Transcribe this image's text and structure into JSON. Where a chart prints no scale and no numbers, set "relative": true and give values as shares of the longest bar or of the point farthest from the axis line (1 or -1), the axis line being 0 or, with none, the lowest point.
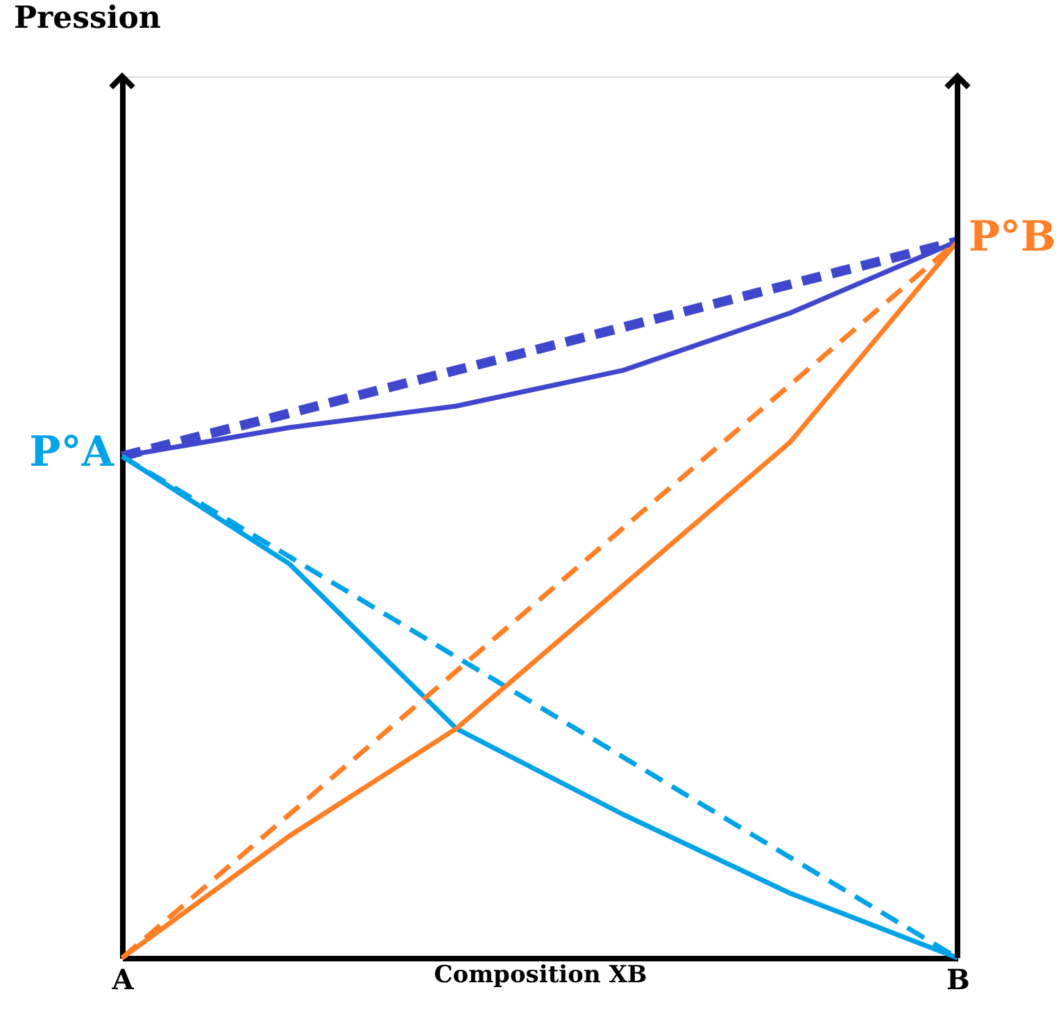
{
  "chart_data": {
    "type": "line",
    "relative": true,
    "xlabel": "Composition XB",
    "categories": [
      "A",
      null,
      null,
      null,
      null,
      "B"
    ],
    "tick_labels": "x",
    "series": [
      {
        "color": "#3f48cc",
        "line_style": "dashed",
        "values": [
          0.7,
          0.76,
          0.82,
          0.88,
          0.94,
          1
        ]
      },
      {
        "color": "#3f48cc",
        "line_style": "solid",
        "values": [
          0.7,
          0.74,
          0.77,
          0.82,
          0.9,
          1
        ]
      },
      {
        "color": "#00a2e8",
        "line_style": "dashed",
        "values": [
          0.7,
          0.56,
          0.42,
          0.28,
          0.14,
          0
        ]
      },
      {
        "color": "#00a2e8",
        "line_style": "solid",
        "values": [
          0.7,
          0.55,
          0.32,
          0.2,
          0.09,
          0
        ]
      },
      {
        "color": "#ff7f27",
        "line_style": "dashed",
        "values": [
          0,
          0.2,
          0.4,
          0.6,
          0.8,
          1
        ]
      },
      {
        "color": "#ff7f27",
        "line_style": "solid",
        "values": [
          0,
          0.17,
          0.32,
          0.52,
          0.72,
          1
        ]
      }
    ],
    "annotations": [
      "Pression",
      {
        "text": "P°A",
        "x": "A",
        "y": 0.7
      },
      {
        "text": "P°B",
        "x": "B",
        "y": 1
      }
    ]
  }
}
